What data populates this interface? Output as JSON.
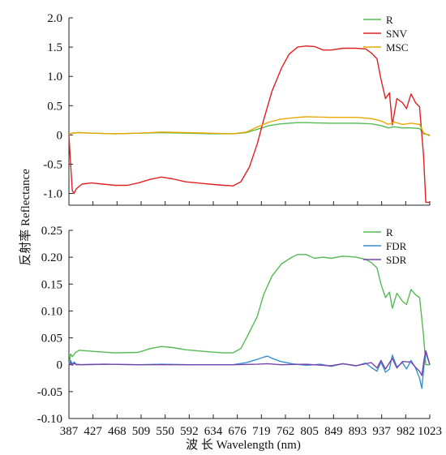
{
  "chart_data": [
    {
      "type": "line",
      "xlim": [
        387,
        1023
      ],
      "ylim": [
        -1.2,
        2.0
      ],
      "yticks": [
        "2.0",
        "1.5",
        "1.0",
        "0.5",
        "0",
        "-0.5",
        "-1.0"
      ],
      "legend": "top-right",
      "grid": false,
      "series": [
        {
          "name": "R",
          "color": "#55bb55",
          "points": [
            [
              387,
              0.01
            ],
            [
              392,
              0.03
            ],
            [
              405,
              0.04
            ],
            [
              427,
              0.03
            ],
            [
              468,
              0.02
            ],
            [
              509,
              0.03
            ],
            [
              550,
              0.04
            ],
            [
              592,
              0.03
            ],
            [
              634,
              0.02
            ],
            [
              676,
              0.02
            ],
            [
              700,
              0.04
            ],
            [
              720,
              0.1
            ],
            [
              740,
              0.16
            ],
            [
              760,
              0.19
            ],
            [
              790,
              0.21
            ],
            [
              805,
              0.21
            ],
            [
              849,
              0.2
            ],
            [
              893,
              0.2
            ],
            [
              920,
              0.19
            ],
            [
              937,
              0.16
            ],
            [
              950,
              0.12
            ],
            [
              960,
              0.14
            ],
            [
              975,
              0.12
            ],
            [
              990,
              0.12
            ],
            [
              1005,
              0.11
            ],
            [
              1012,
              0.02
            ],
            [
              1023,
              0.0
            ]
          ]
        },
        {
          "name": "SNV",
          "color": "#dd2222",
          "points": [
            [
              387,
              0.0
            ],
            [
              390,
              -0.5
            ],
            [
              393,
              -0.95
            ],
            [
              396,
              -1.0
            ],
            [
              400,
              -0.92
            ],
            [
              410,
              -0.84
            ],
            [
              427,
              -0.82
            ],
            [
              468,
              -0.86
            ],
            [
              490,
              -0.86
            ],
            [
              509,
              -0.82
            ],
            [
              530,
              -0.76
            ],
            [
              550,
              -0.72
            ],
            [
              570,
              -0.75
            ],
            [
              592,
              -0.8
            ],
            [
              634,
              -0.84
            ],
            [
              660,
              -0.86
            ],
            [
              676,
              -0.87
            ],
            [
              690,
              -0.8
            ],
            [
              705,
              -0.55
            ],
            [
              719,
              -0.15
            ],
            [
              730,
              0.25
            ],
            [
              745,
              0.75
            ],
            [
              762,
              1.15
            ],
            [
              775,
              1.38
            ],
            [
              790,
              1.5
            ],
            [
              805,
              1.52
            ],
            [
              820,
              1.51
            ],
            [
              835,
              1.45
            ],
            [
              849,
              1.45
            ],
            [
              870,
              1.48
            ],
            [
              893,
              1.48
            ],
            [
              910,
              1.47
            ],
            [
              920,
              1.4
            ],
            [
              930,
              1.3
            ],
            [
              937,
              0.95
            ],
            [
              945,
              0.62
            ],
            [
              952,
              0.72
            ],
            [
              957,
              0.17
            ],
            [
              965,
              0.62
            ],
            [
              975,
              0.55
            ],
            [
              982,
              0.45
            ],
            [
              990,
              0.7
            ],
            [
              998,
              0.55
            ],
            [
              1005,
              0.48
            ],
            [
              1012,
              -0.35
            ],
            [
              1016,
              -1.15
            ],
            [
              1023,
              -1.15
            ]
          ]
        },
        {
          "name": "MSC",
          "color": "#e8a800",
          "points": [
            [
              387,
              0.01
            ],
            [
              392,
              0.03
            ],
            [
              405,
              0.04
            ],
            [
              427,
              0.03
            ],
            [
              468,
              0.02
            ],
            [
              509,
              0.03
            ],
            [
              550,
              0.05
            ],
            [
              592,
              0.04
            ],
            [
              634,
              0.03
            ],
            [
              676,
              0.02
            ],
            [
              700,
              0.05
            ],
            [
              720,
              0.14
            ],
            [
              740,
              0.22
            ],
            [
              760,
              0.27
            ],
            [
              790,
              0.3
            ],
            [
              805,
              0.31
            ],
            [
              849,
              0.3
            ],
            [
              893,
              0.3
            ],
            [
              920,
              0.28
            ],
            [
              937,
              0.24
            ],
            [
              950,
              0.18
            ],
            [
              960,
              0.22
            ],
            [
              975,
              0.18
            ],
            [
              990,
              0.2
            ],
            [
              1005,
              0.18
            ],
            [
              1012,
              0.04
            ],
            [
              1023,
              -0.02
            ]
          ]
        }
      ]
    },
    {
      "type": "line",
      "xlim": [
        387,
        1023
      ],
      "ylim": [
        -0.1,
        0.25
      ],
      "yticks": [
        "0.25",
        "0.20",
        "0.15",
        "0.10",
        "0.05",
        "0",
        "-0.05",
        "-0.10"
      ],
      "xticks": [
        "387",
        "427",
        "468",
        "509",
        "550",
        "592",
        "634",
        "676",
        "719",
        "762",
        "805",
        "849",
        "893",
        "937",
        "982",
        "1023"
      ],
      "legend": "top-right",
      "grid": false,
      "series": [
        {
          "name": "R",
          "color": "#55bb55",
          "points": [
            [
              387,
              0.0
            ],
            [
              390,
              0.02
            ],
            [
              393,
              0.015
            ],
            [
              398,
              0.022
            ],
            [
              405,
              0.027
            ],
            [
              427,
              0.025
            ],
            [
              468,
              0.022
            ],
            [
              509,
              0.023
            ],
            [
              530,
              0.03
            ],
            [
              550,
              0.034
            ],
            [
              570,
              0.032
            ],
            [
              592,
              0.028
            ],
            [
              634,
              0.024
            ],
            [
              660,
              0.022
            ],
            [
              676,
              0.022
            ],
            [
              690,
              0.03
            ],
            [
              700,
              0.05
            ],
            [
              719,
              0.09
            ],
            [
              730,
              0.13
            ],
            [
              745,
              0.165
            ],
            [
              762,
              0.188
            ],
            [
              780,
              0.2
            ],
            [
              790,
              0.205
            ],
            [
              805,
              0.205
            ],
            [
              820,
              0.198
            ],
            [
              835,
              0.2
            ],
            [
              849,
              0.198
            ],
            [
              870,
              0.202
            ],
            [
              893,
              0.2
            ],
            [
              910,
              0.196
            ],
            [
              920,
              0.19
            ],
            [
              930,
              0.18
            ],
            [
              937,
              0.15
            ],
            [
              945,
              0.125
            ],
            [
              952,
              0.135
            ],
            [
              957,
              0.105
            ],
            [
              965,
              0.133
            ],
            [
              975,
              0.118
            ],
            [
              982,
              0.112
            ],
            [
              990,
              0.14
            ],
            [
              998,
              0.13
            ],
            [
              1005,
              0.125
            ],
            [
              1012,
              0.055
            ],
            [
              1016,
              0.0
            ],
            [
              1023,
              0.0
            ]
          ]
        },
        {
          "name": "FDR",
          "color": "#3a8fd0",
          "points": [
            [
              387,
              0.0
            ],
            [
              390,
              0.008
            ],
            [
              393,
              0.001
            ],
            [
              396,
              0.005
            ],
            [
              400,
              0.001
            ],
            [
              410,
              0.0
            ],
            [
              450,
              0.001
            ],
            [
              509,
              0.0
            ],
            [
              550,
              0.001
            ],
            [
              600,
              0.0
            ],
            [
              676,
              0.0
            ],
            [
              700,
              0.004
            ],
            [
              719,
              0.01
            ],
            [
              730,
              0.014
            ],
            [
              737,
              0.016
            ],
            [
              745,
              0.012
            ],
            [
              760,
              0.006
            ],
            [
              780,
              0.002
            ],
            [
              805,
              -0.001
            ],
            [
              830,
              0.001
            ],
            [
              849,
              -0.003
            ],
            [
              870,
              0.002
            ],
            [
              893,
              -0.002
            ],
            [
              910,
              0.003
            ],
            [
              920,
              -0.005
            ],
            [
              930,
              -0.012
            ],
            [
              937,
              0.005
            ],
            [
              945,
              -0.014
            ],
            [
              952,
              -0.008
            ],
            [
              957,
              0.018
            ],
            [
              965,
              -0.004
            ],
            [
              975,
              0.004
            ],
            [
              982,
              -0.008
            ],
            [
              990,
              0.008
            ],
            [
              998,
              -0.006
            ],
            [
              1005,
              -0.025
            ],
            [
              1009,
              -0.044
            ],
            [
              1013,
              0.0
            ],
            [
              1016,
              0.022
            ],
            [
              1023,
              0.0
            ]
          ]
        },
        {
          "name": "SDR",
          "color": "#7744aa",
          "points": [
            [
              387,
              0.0
            ],
            [
              390,
              0.004
            ],
            [
              393,
              -0.001
            ],
            [
              396,
              0.003
            ],
            [
              400,
              0.0
            ],
            [
              450,
              0.001
            ],
            [
              509,
              0.0
            ],
            [
              600,
              0.0
            ],
            [
              676,
              0.0
            ],
            [
              719,
              0.001
            ],
            [
              737,
              0.002
            ],
            [
              760,
              0.0
            ],
            [
              805,
              0.001
            ],
            [
              849,
              -0.002
            ],
            [
              870,
              0.002
            ],
            [
              893,
              -0.002
            ],
            [
              920,
              0.004
            ],
            [
              930,
              -0.006
            ],
            [
              937,
              0.008
            ],
            [
              945,
              -0.008
            ],
            [
              957,
              0.012
            ],
            [
              965,
              -0.006
            ],
            [
              975,
              0.006
            ],
            [
              990,
              0.005
            ],
            [
              998,
              -0.005
            ],
            [
              1005,
              -0.012
            ],
            [
              1009,
              -0.02
            ],
            [
              1013,
              0.01
            ],
            [
              1016,
              0.026
            ],
            [
              1023,
              0.0
            ]
          ]
        }
      ]
    }
  ],
  "ylabel": "反射率 Reflectance",
  "xlabel": "波 长 Wavelength (nm)"
}
